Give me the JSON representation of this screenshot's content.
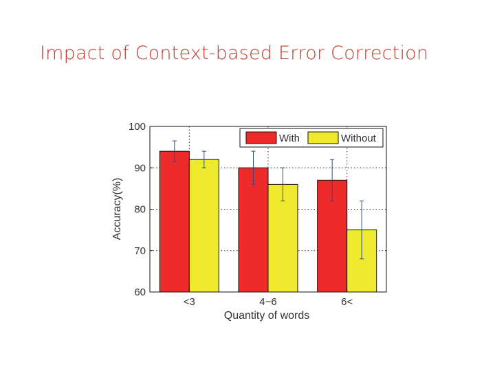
{
  "slide": {
    "title": "Impact of Context-based Error Correction"
  },
  "chart_data": {
    "type": "bar",
    "categories": [
      "<3",
      "4−6",
      "6<"
    ],
    "series": [
      {
        "name": "With",
        "values": [
          94,
          90,
          87
        ],
        "errors": [
          2.5,
          4,
          5
        ],
        "color": "#ee2b2b"
      },
      {
        "name": "Without",
        "values": [
          92,
          86,
          75
        ],
        "errors": [
          2,
          4,
          7
        ],
        "color": "#f0ea2e"
      }
    ],
    "title": "",
    "xlabel": "Quantity of words",
    "ylabel": "Accuracy(%)",
    "ylim": [
      60,
      100
    ],
    "yticks": [
      60,
      70,
      80,
      90,
      100
    ],
    "grid": true,
    "legend": "top-right"
  }
}
